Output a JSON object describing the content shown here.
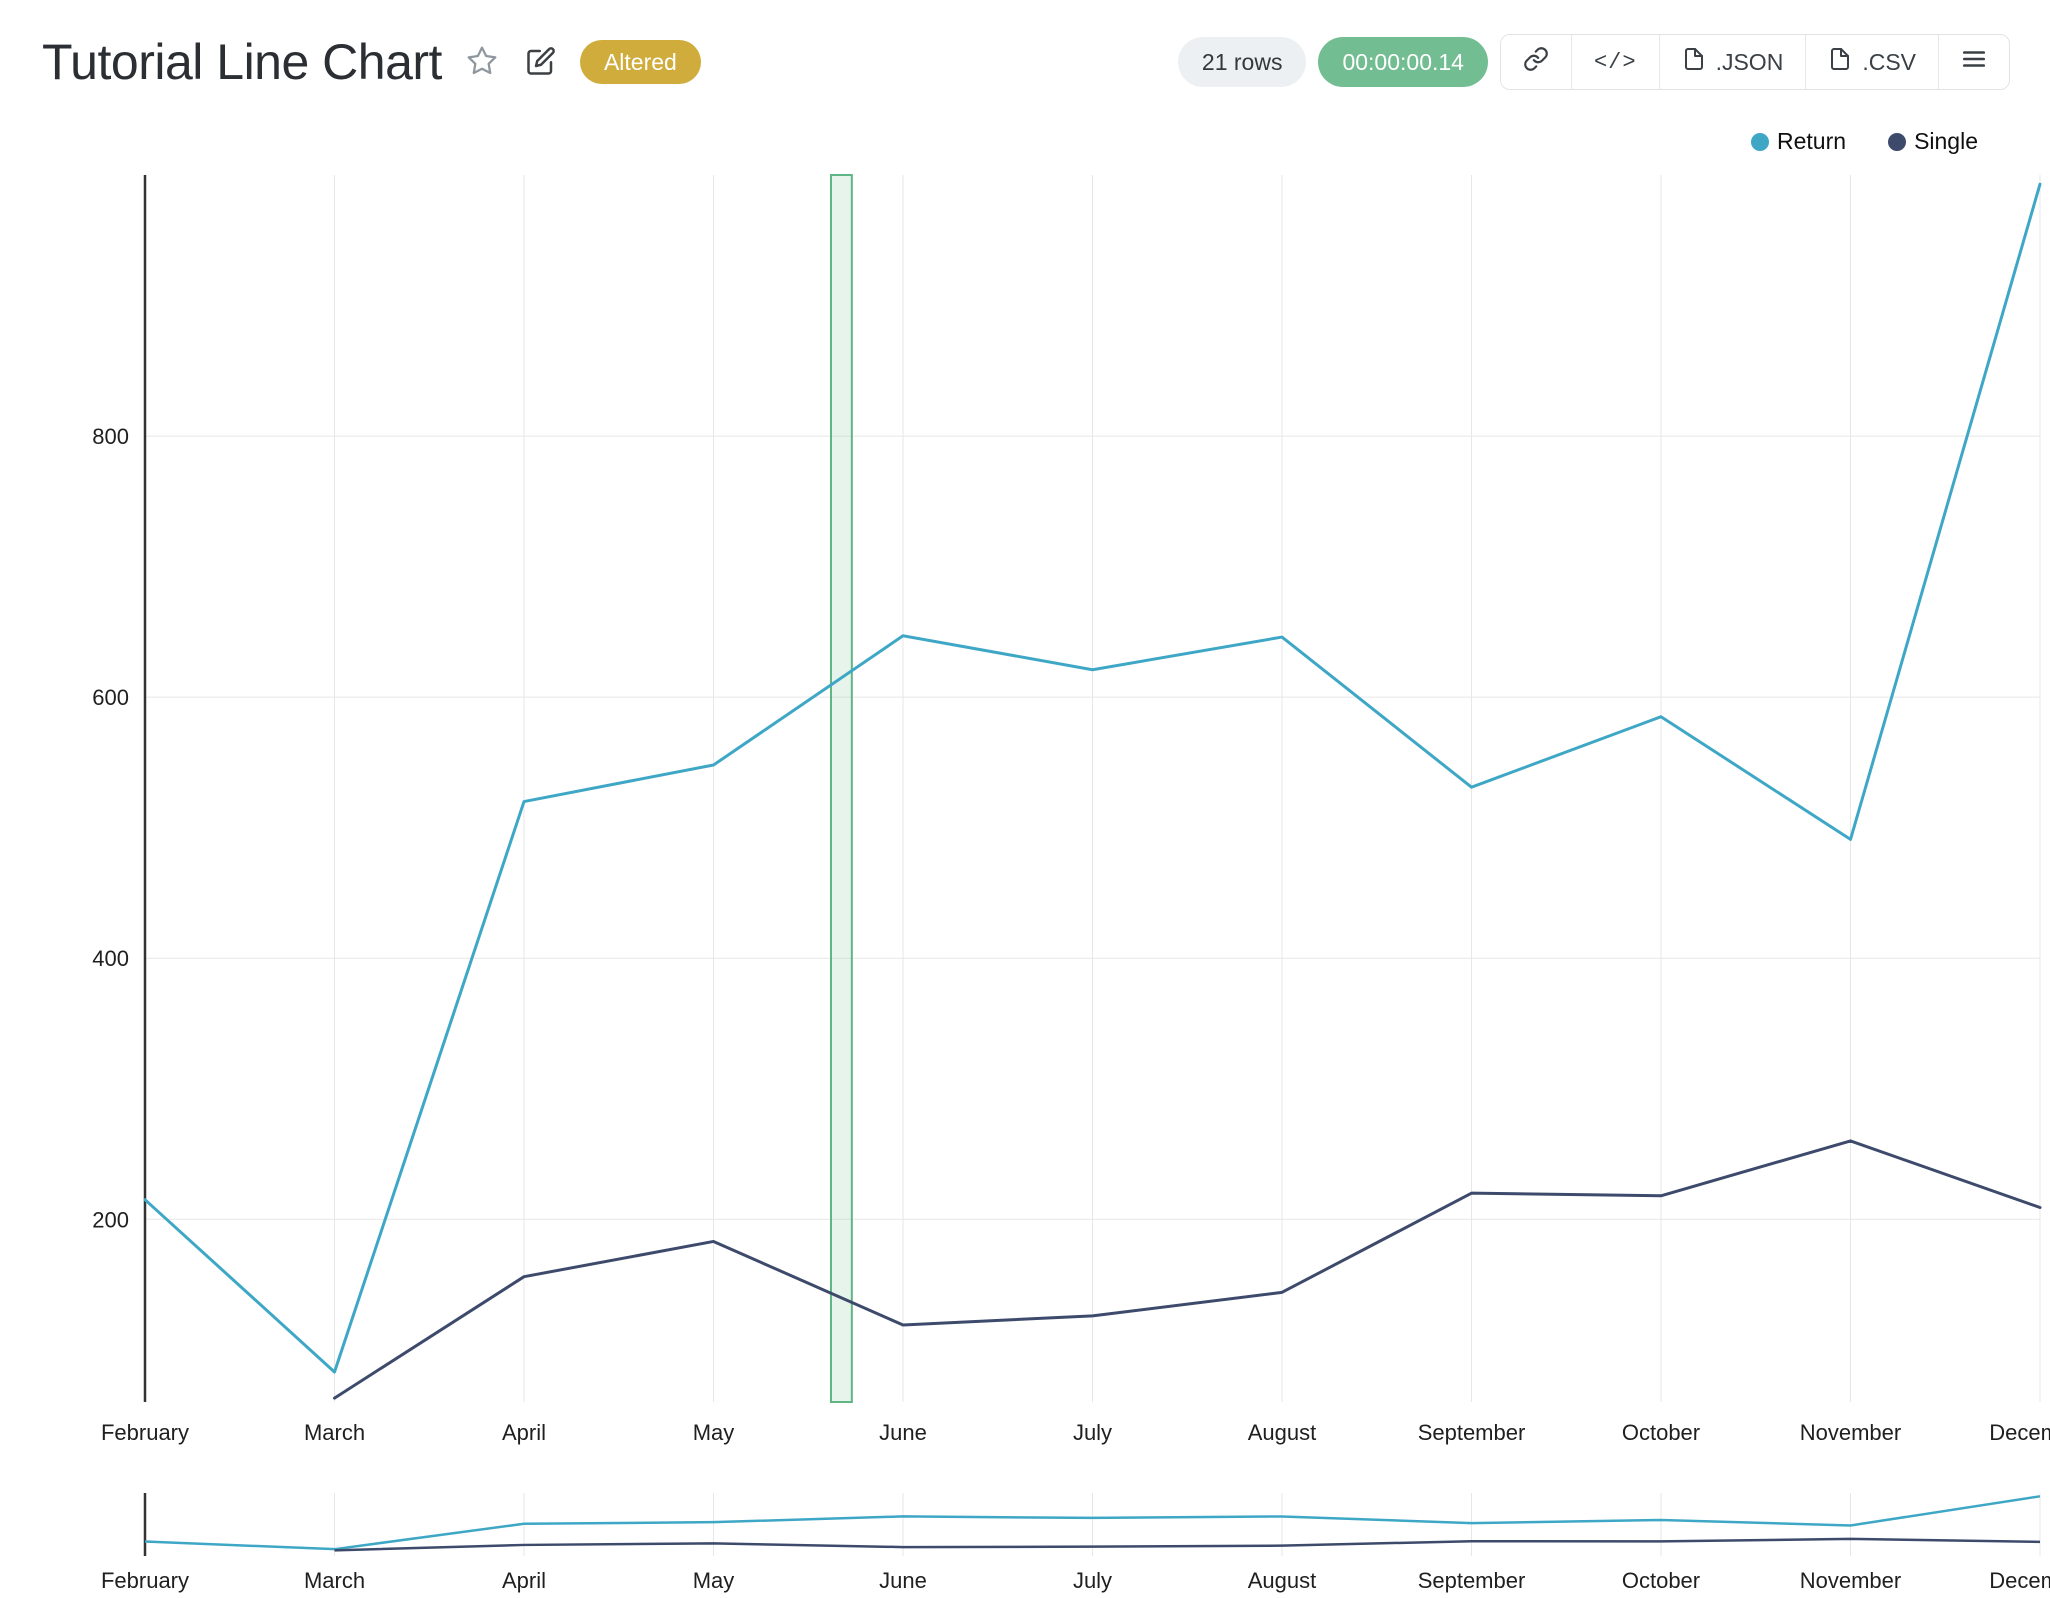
{
  "header": {
    "title": "Tutorial Line Chart",
    "altered_badge": "Altered",
    "rows_badge": "21 rows",
    "timer_badge": "00:00:00.14",
    "code_label": "</>",
    "export_json_label": ".JSON",
    "export_csv_label": ".CSV"
  },
  "colors": {
    "return_series": "#3FA7C6",
    "single_series": "#3D4A6B",
    "altered_badge_bg": "#D0AC3C",
    "timer_badge_bg": "#73BD92",
    "band_fill": "rgba(120,195,150,0.18)",
    "band_stroke": "#5FB584",
    "grid": "#E7E7E7",
    "axis": "#333333",
    "tick_text": "#1F1F1F"
  },
  "legend": [
    {
      "label": "Return",
      "color": "#3FA7C6"
    },
    {
      "label": "Single",
      "color": "#3D4A6B"
    }
  ],
  "chart_data": {
    "type": "line",
    "title": "Tutorial Line Chart",
    "categories": [
      "February",
      "March",
      "April",
      "May",
      "June",
      "July",
      "August",
      "September",
      "October",
      "November",
      "December"
    ],
    "series": [
      {
        "name": "Return",
        "color": "#3FA7C6",
        "start_index": 0,
        "values": [
          215,
          83,
          520,
          548,
          647,
          621,
          646,
          531,
          585,
          491,
          993
        ]
      },
      {
        "name": "Single",
        "color": "#3D4A6B",
        "start_index": 1,
        "values": [
          63,
          156,
          183,
          119,
          126,
          144,
          220,
          218,
          260,
          209
        ]
      }
    ],
    "xlabel": "",
    "ylabel": "",
    "y_ticks": [
      200,
      400,
      600,
      800
    ],
    "y_domain": [
      60,
      1000
    ],
    "grid": true,
    "legend_position": "top-right",
    "reference_band": {
      "from_index": 3.62,
      "to_index": 3.73
    },
    "has_mini_navigator": true,
    "mini_y_domain": [
      0,
      1050
    ]
  }
}
